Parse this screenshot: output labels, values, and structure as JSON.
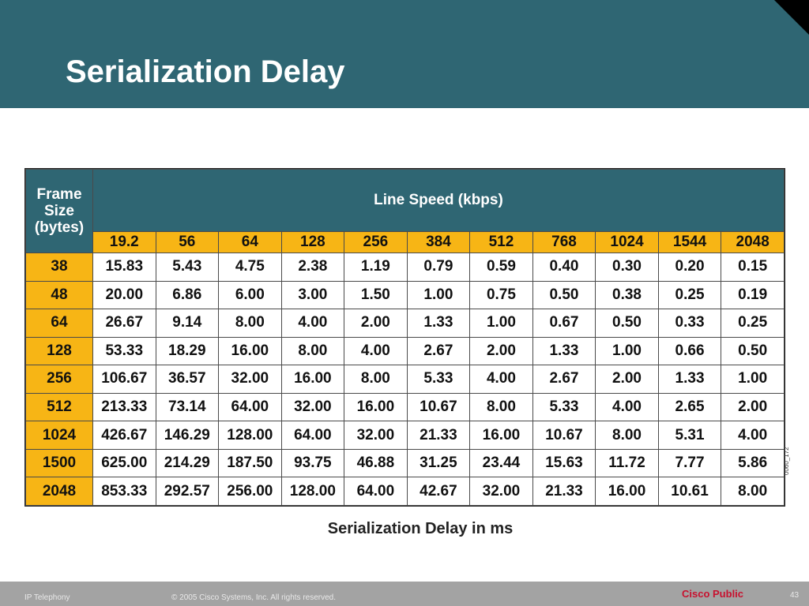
{
  "slide": {
    "title": "Serialization Delay",
    "caption": "Serialization Delay in ms",
    "figure_code": "0060_172"
  },
  "table": {
    "corner_header": "Frame\nSize\n(bytes)",
    "group_header": "Line Speed (kbps)",
    "speeds": [
      "19.2",
      "56",
      "64",
      "128",
      "256",
      "384",
      "512",
      "768",
      "1024",
      "1544",
      "2048"
    ],
    "rows": [
      {
        "frame": "38",
        "values": [
          "15.83",
          "5.43",
          "4.75",
          "2.38",
          "1.19",
          "0.79",
          "0.59",
          "0.40",
          "0.30",
          "0.20",
          "0.15"
        ]
      },
      {
        "frame": "48",
        "values": [
          "20.00",
          "6.86",
          "6.00",
          "3.00",
          "1.50",
          "1.00",
          "0.75",
          "0.50",
          "0.38",
          "0.25",
          "0.19"
        ]
      },
      {
        "frame": "64",
        "values": [
          "26.67",
          "9.14",
          "8.00",
          "4.00",
          "2.00",
          "1.33",
          "1.00",
          "0.67",
          "0.50",
          "0.33",
          "0.25"
        ]
      },
      {
        "frame": "128",
        "values": [
          "53.33",
          "18.29",
          "16.00",
          "8.00",
          "4.00",
          "2.67",
          "2.00",
          "1.33",
          "1.00",
          "0.66",
          "0.50"
        ]
      },
      {
        "frame": "256",
        "values": [
          "106.67",
          "36.57",
          "32.00",
          "16.00",
          "8.00",
          "5.33",
          "4.00",
          "2.67",
          "2.00",
          "1.33",
          "1.00"
        ]
      },
      {
        "frame": "512",
        "values": [
          "213.33",
          "73.14",
          "64.00",
          "32.00",
          "16.00",
          "10.67",
          "8.00",
          "5.33",
          "4.00",
          "2.65",
          "2.00"
        ]
      },
      {
        "frame": "1024",
        "values": [
          "426.67",
          "146.29",
          "128.00",
          "64.00",
          "32.00",
          "21.33",
          "16.00",
          "10.67",
          "8.00",
          "5.31",
          "4.00"
        ]
      },
      {
        "frame": "1500",
        "values": [
          "625.00",
          "214.29",
          "187.50",
          "93.75",
          "46.88",
          "31.25",
          "23.44",
          "15.63",
          "11.72",
          "7.77",
          "5.86"
        ]
      },
      {
        "frame": "2048",
        "values": [
          "853.33",
          "292.57",
          "256.00",
          "128.00",
          "64.00",
          "42.67",
          "32.00",
          "21.33",
          "16.00",
          "10.61",
          "8.00"
        ]
      }
    ]
  },
  "footer": {
    "section": "IP Telephony",
    "copyright": "© 2005 Cisco Systems, Inc. All rights reserved.",
    "classification": "Cisco Public",
    "page": "43"
  },
  "colors": {
    "header_bg": "#2f6673",
    "highlight": "#f7b515",
    "footer_bg": "#a3a3a3",
    "public_red": "#c8102e"
  }
}
